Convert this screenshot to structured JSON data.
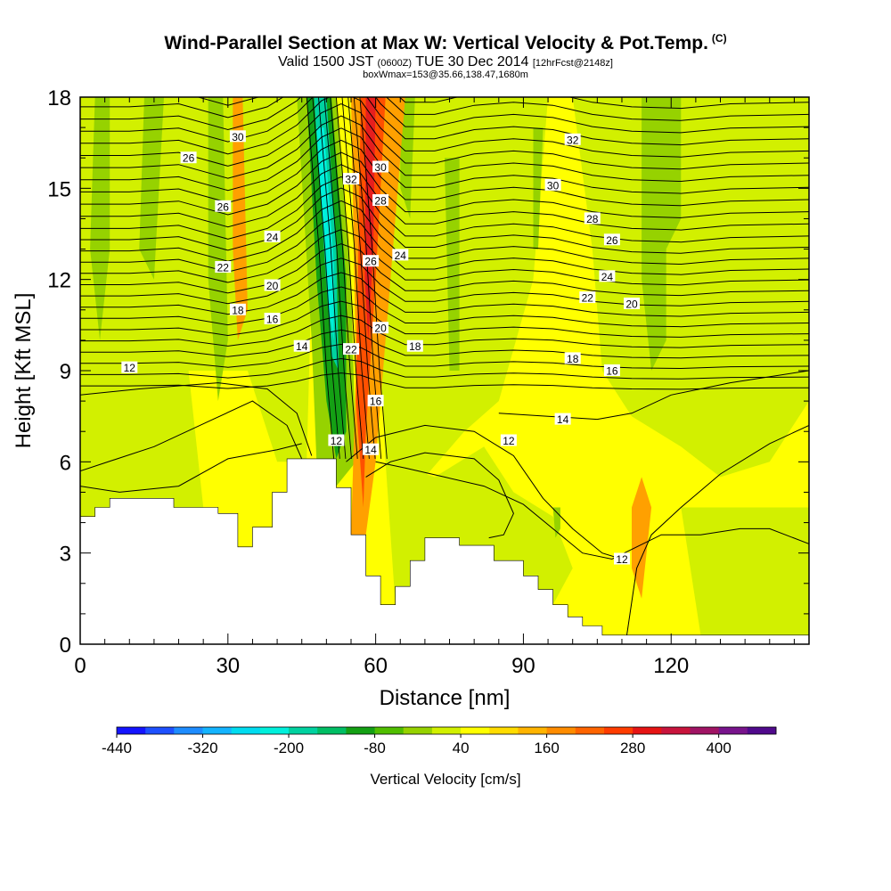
{
  "header": {
    "title": "Wind-Parallel Section at Max W: Vertical Velocity & Pot.Temp.",
    "copyright": "(C)",
    "valid_prefix": "Valid 1500 JST",
    "valid_utc": "(0600Z)",
    "valid_date": "TUE 30 Dec 2014",
    "forecast": "[12hrFcst@2148z]",
    "boxwmax": "boxWmax=153@35.66,138.47,1680m"
  },
  "colors": {
    "background_field": "#ffff00",
    "light_green": "#d2f000",
    "green": "#96d200",
    "dark_green": "#14a014",
    "cyan": "#00f0dc",
    "teal": "#00d2a0",
    "orange": "#ffa000",
    "red_orange": "#ff5000",
    "red": "#e61e1e",
    "terrain": "#ffffff",
    "contour": "#000000"
  },
  "chart_data": {
    "type": "heatmap",
    "xlabel": "Distance [nm]",
    "ylabel": "Height [Kft MSL]",
    "xlim": [
      0,
      148
    ],
    "ylim": [
      0,
      18
    ],
    "xticks": [
      0,
      30,
      60,
      90,
      120
    ],
    "yticks": [
      0,
      3,
      6,
      9,
      12,
      15,
      18
    ],
    "colorbar": {
      "title": "Vertical Velocity [cm/s]",
      "tick_labels": [
        "-440",
        "-320",
        "-200",
        "-80",
        "40",
        "160",
        "280",
        "400"
      ],
      "tick_values": [
        -440,
        -320,
        -200,
        -80,
        40,
        160,
        280,
        400
      ],
      "bins": [
        {
          "from": -440,
          "to": -400,
          "color": "#1414ff"
        },
        {
          "from": -400,
          "to": -360,
          "color": "#1e50ff"
        },
        {
          "from": -360,
          "to": -320,
          "color": "#1e8cff"
        },
        {
          "from": -320,
          "to": -280,
          "color": "#14b4ff"
        },
        {
          "from": -280,
          "to": -240,
          "color": "#00dcf0"
        },
        {
          "from": -240,
          "to": -200,
          "color": "#00f0dc"
        },
        {
          "from": -200,
          "to": -160,
          "color": "#00d2a0"
        },
        {
          "from": -160,
          "to": -120,
          "color": "#00be64"
        },
        {
          "from": -120,
          "to": -80,
          "color": "#14a014"
        },
        {
          "from": -80,
          "to": -40,
          "color": "#50be00"
        },
        {
          "from": -40,
          "to": 0,
          "color": "#96d200"
        },
        {
          "from": 0,
          "to": 40,
          "color": "#d2f000"
        },
        {
          "from": 40,
          "to": 80,
          "color": "#ffff00"
        },
        {
          "from": 80,
          "to": 120,
          "color": "#ffdc00"
        },
        {
          "from": 120,
          "to": 160,
          "color": "#ffb400"
        },
        {
          "from": 160,
          "to": 200,
          "color": "#ff8c00"
        },
        {
          "from": 200,
          "to": 240,
          "color": "#ff6400"
        },
        {
          "from": 240,
          "to": 280,
          "color": "#ff3c00"
        },
        {
          "from": 280,
          "to": 320,
          "color": "#e61414"
        },
        {
          "from": 320,
          "to": 360,
          "color": "#c8143c"
        },
        {
          "from": 360,
          "to": 400,
          "color": "#a01464"
        },
        {
          "from": 400,
          "to": 440,
          "color": "#78148c"
        },
        {
          "from": 440,
          "to": 480,
          "color": "#500a8c"
        }
      ]
    },
    "terrain_profile": [
      [
        0,
        4.2
      ],
      [
        3,
        4.2
      ],
      [
        3,
        4.5
      ],
      [
        6,
        4.5
      ],
      [
        6,
        4.8
      ],
      [
        19,
        4.8
      ],
      [
        19,
        4.5
      ],
      [
        28,
        4.5
      ],
      [
        28,
        4.3
      ],
      [
        32,
        4.3
      ],
      [
        32,
        3.2
      ],
      [
        35,
        3.2
      ],
      [
        35,
        3.85
      ],
      [
        39,
        3.85
      ],
      [
        39,
        5.0
      ],
      [
        42,
        5.0
      ],
      [
        42,
        6.1
      ],
      [
        52,
        6.1
      ],
      [
        52,
        5.15
      ],
      [
        55,
        5.15
      ],
      [
        55,
        3.6
      ],
      [
        58,
        3.6
      ],
      [
        58,
        2.25
      ],
      [
        61,
        2.25
      ],
      [
        61,
        1.3
      ],
      [
        64,
        1.3
      ],
      [
        64,
        1.9
      ],
      [
        67,
        1.9
      ],
      [
        67,
        2.75
      ],
      [
        70,
        2.75
      ],
      [
        70,
        3.5
      ],
      [
        77,
        3.5
      ],
      [
        77,
        3.25
      ],
      [
        84,
        3.25
      ],
      [
        84,
        2.75
      ],
      [
        90,
        2.75
      ],
      [
        90,
        2.25
      ],
      [
        93,
        2.25
      ],
      [
        93,
        1.8
      ],
      [
        96,
        1.8
      ],
      [
        96,
        1.3
      ],
      [
        99,
        1.3
      ],
      [
        99,
        0.9
      ],
      [
        102,
        0.9
      ],
      [
        102,
        0.6
      ],
      [
        106,
        0.6
      ],
      [
        106,
        0.3
      ],
      [
        148,
        0.3
      ]
    ],
    "contour_labels": [
      {
        "value": "30",
        "x": 32,
        "y": 16.7
      },
      {
        "value": "32",
        "x": 100,
        "y": 16.6
      },
      {
        "value": "26",
        "x": 22,
        "y": 16.0
      },
      {
        "value": "32",
        "x": 55,
        "y": 15.3
      },
      {
        "value": "30",
        "x": 61,
        "y": 15.7
      },
      {
        "value": "30",
        "x": 96,
        "y": 15.1
      },
      {
        "value": "26",
        "x": 29,
        "y": 14.4
      },
      {
        "value": "28",
        "x": 61,
        "y": 14.6
      },
      {
        "value": "28",
        "x": 104,
        "y": 14.0
      },
      {
        "value": "24",
        "x": 39,
        "y": 13.4
      },
      {
        "value": "26",
        "x": 59,
        "y": 12.6
      },
      {
        "value": "24",
        "x": 65,
        "y": 12.8
      },
      {
        "value": "26",
        "x": 108,
        "y": 13.3
      },
      {
        "value": "22",
        "x": 29,
        "y": 12.4
      },
      {
        "value": "24",
        "x": 107,
        "y": 12.1
      },
      {
        "value": "20",
        "x": 39,
        "y": 11.8
      },
      {
        "value": "22",
        "x": 103,
        "y": 11.4
      },
      {
        "value": "20",
        "x": 112,
        "y": 11.2
      },
      {
        "value": "18",
        "x": 32,
        "y": 11.0
      },
      {
        "value": "16",
        "x": 39,
        "y": 10.7
      },
      {
        "value": "20",
        "x": 61,
        "y": 10.4
      },
      {
        "value": "14",
        "x": 45,
        "y": 9.8
      },
      {
        "value": "22",
        "x": 55,
        "y": 9.7
      },
      {
        "value": "18",
        "x": 68,
        "y": 9.8
      },
      {
        "value": "18",
        "x": 100,
        "y": 9.4
      },
      {
        "value": "12",
        "x": 10,
        "y": 9.1
      },
      {
        "value": "16",
        "x": 108,
        "y": 9.0
      },
      {
        "value": "16",
        "x": 60,
        "y": 8.0
      },
      {
        "value": "14",
        "x": 98,
        "y": 7.4
      },
      {
        "value": "12",
        "x": 52,
        "y": 6.7
      },
      {
        "value": "12",
        "x": 87,
        "y": 6.7
      },
      {
        "value": "14",
        "x": 59,
        "y": 6.4
      },
      {
        "value": "12",
        "x": 110,
        "y": 2.8
      }
    ]
  }
}
